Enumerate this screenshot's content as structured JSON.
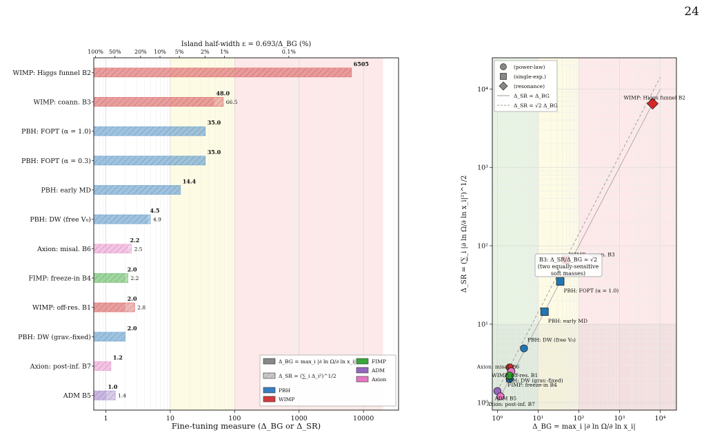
{
  "page": {
    "number": "24"
  },
  "chart_data": [
    {
      "type": "bar",
      "orientation": "horizontal",
      "x_scale": "log",
      "xlim": [
        0.65,
        35000
      ],
      "xlabel": "Fine-tuning measure  (Δ_BG or Δ_SR)",
      "top_axis": {
        "label": "Island half-width ε = 0.693/Δ_BG  (%)",
        "ticks": [
          {
            "x": 0.693,
            "label": "100%"
          },
          {
            "x": 1.386,
            "label": "50%"
          },
          {
            "x": 3.465,
            "label": "20%"
          },
          {
            "x": 6.93,
            "label": "10%"
          },
          {
            "x": 13.86,
            "label": "5%"
          },
          {
            "x": 34.65,
            "label": "2%"
          },
          {
            "x": 69.3,
            "label": "1%"
          },
          {
            "x": 693,
            "label": "0.1%"
          }
        ]
      },
      "x_ticks": [
        {
          "x": 1,
          "label": "1"
        },
        {
          "x": 10,
          "label": "10"
        },
        {
          "x": 100,
          "label": "100"
        },
        {
          "x": 1000,
          "label": "1000"
        },
        {
          "x": 10000,
          "label": "10000"
        }
      ],
      "regions": [
        {
          "from": 10,
          "to": 100,
          "color": "#fdfbe3"
        },
        {
          "from": 100,
          "to": 20000,
          "color": "#fde9e9"
        }
      ],
      "categories": [
        "WIMP: Higgs funnel B2",
        "WIMP: coann. B3",
        "PBH: FOPT (α = 1.0)",
        "PBH: FOPT (α = 0.3)",
        "PBH: early MD",
        "PBH: DW (free V₀)",
        "Axion: misal. B6",
        "FIMP: freeze-in B4",
        "WIMP: off-res. B1",
        "PBH: DW (grav.-fixed)",
        "Axion: post-inf. B7",
        "ADM B5"
      ],
      "groups": [
        "WIMP",
        "WIMP",
        "PBH",
        "PBH",
        "PBH",
        "PBH",
        "Axion",
        "FIMP",
        "WIMP",
        "PBH",
        "Axion",
        "ADM"
      ],
      "delta_bg": [
        6505,
        48.0,
        35.0,
        35.0,
        14.4,
        4.5,
        2.2,
        2.0,
        2.0,
        2.0,
        1.2,
        1.0
      ],
      "delta_bg_labels": [
        "6505",
        "48.0",
        "35.0",
        "35.0",
        "14.4",
        "4.5",
        "2.2",
        "2.0",
        "2.0",
        "2.0",
        "1.2",
        "1.0"
      ],
      "delta_sr": [
        6505,
        66.5,
        35.0,
        35.0,
        14.4,
        4.9,
        2.5,
        2.2,
        2.8,
        2.0,
        1.2,
        1.4
      ],
      "delta_sr_labels": [
        "",
        "66.5",
        "",
        "",
        "",
        "4.9",
        "2.5",
        "2.2",
        "2.8",
        "",
        "",
        "1.4"
      ],
      "group_colors": {
        "PBH": "#7fb0d8",
        "WIMP": "#e57f7f",
        "FIMP": "#7fc97f",
        "ADM": "#b9a0d9",
        "Axion": "#f2b0dc"
      },
      "legend": {
        "placement": "lower-right",
        "items": [
          {
            "label": "Δ_BG = max_i |∂ ln Ω/∂ ln x_i|",
            "color": "#888888",
            "hatch": false
          },
          {
            "label": "FIMP",
            "color": "#3aa53a",
            "hatch": false
          },
          {
            "label": "Δ_SR = (∑_i Δ_i²)^1/2",
            "color": "#bbbbbb",
            "hatch": true
          },
          {
            "label": "ADM",
            "color": "#9467bd",
            "hatch": false
          },
          {
            "label": "PBH",
            "color": "#3a7ec0",
            "hatch": false
          },
          {
            "label": "Axion",
            "color": "#e377c2",
            "hatch": false
          },
          {
            "label": "WIMP",
            "color": "#d23c3c",
            "hatch": false
          }
        ]
      }
    },
    {
      "type": "scatter",
      "x_scale": "log",
      "y_scale": "log",
      "xlim": [
        0.75,
        25000
      ],
      "ylim": [
        0.8,
        25000
      ],
      "xlabel": "Δ_BG = max_i |∂ ln Ω/∂ ln x_i|",
      "ylabel": "Δ_SR = (∑_i |∂ ln Ω/∂ ln x_i|²)^1/2",
      "x_ticks": [
        {
          "x": 1,
          "label": "10⁰"
        },
        {
          "x": 10,
          "label": "10¹"
        },
        {
          "x": 100,
          "label": "10²"
        },
        {
          "x": 1000,
          "label": "10³"
        },
        {
          "x": 10000,
          "label": "10⁴"
        }
      ],
      "y_ticks": [
        {
          "y": 1,
          "label": "10⁰"
        },
        {
          "y": 10,
          "label": "10¹"
        },
        {
          "y": 100,
          "label": "10²"
        },
        {
          "y": 1000,
          "label": "10³"
        },
        {
          "y": 10000,
          "label": "10⁴"
        }
      ],
      "points": [
        {
          "label": "WIMP: Higgs funnel B2",
          "x": 6505,
          "y": 6505,
          "marker": "diamond",
          "color": "#d62728"
        },
        {
          "label": "WIMP: coann. B3",
          "x": 48,
          "y": 66.5,
          "marker": "square",
          "color": "#d62728"
        },
        {
          "label": "PBH: FOPT (α = 1.0)",
          "x": 35,
          "y": 35,
          "marker": "square",
          "color": "#1f77b4"
        },
        {
          "label": "PBH: early MD",
          "x": 14.4,
          "y": 14.4,
          "marker": "square",
          "color": "#1f77b4"
        },
        {
          "label": "PBH: DW (free V₀)",
          "x": 4.5,
          "y": 4.9,
          "marker": "circle",
          "color": "#1f77b4"
        },
        {
          "label": "WIMP: off-res. B1",
          "x": 2.0,
          "y": 2.8,
          "marker": "circle",
          "color": "#d62728"
        },
        {
          "label": "Axion: misal. B6",
          "x": 2.2,
          "y": 2.5,
          "marker": "circle",
          "color": "#e377c2"
        },
        {
          "label": "PBH: DW (grav.-fixed)",
          "x": 2.0,
          "y": 2.0,
          "marker": "circle",
          "color": "#1f77b4"
        },
        {
          "label": "FIMP: freeze-in B4",
          "x": 2.0,
          "y": 2.2,
          "marker": "circle",
          "color": "#2ca02c"
        },
        {
          "label": "ADM B5",
          "x": 1.0,
          "y": 1.4,
          "marker": "circle",
          "color": "#9467bd"
        },
        {
          "label": "Axion: post-inf. B7",
          "x": 1.2,
          "y": 1.2,
          "marker": "circle",
          "color": "#e377c2"
        }
      ],
      "lines": [
        {
          "label": "Δ_SR = Δ_BG",
          "factor": 1,
          "style": "solid"
        },
        {
          "label": "Δ_SR = √2 Δ_BG",
          "factor": 1.414,
          "style": "dashed"
        }
      ],
      "annotation": "B3: Δ_SR/Δ_BG ≈ √2\n(two equally-sensitive\nsoft masses)",
      "legend": {
        "placement": "top-left",
        "items": [
          {
            "label": "(power-law)",
            "marker": "circle"
          },
          {
            "label": "(single-exp.)",
            "marker": "square"
          },
          {
            "label": "(resonance)",
            "marker": "diamond"
          },
          {
            "label": "Δ_SR = Δ_BG",
            "marker": "solid-line"
          },
          {
            "label": "Δ_SR = √2 Δ_BG",
            "marker": "dashed-line"
          }
        ]
      }
    }
  ]
}
